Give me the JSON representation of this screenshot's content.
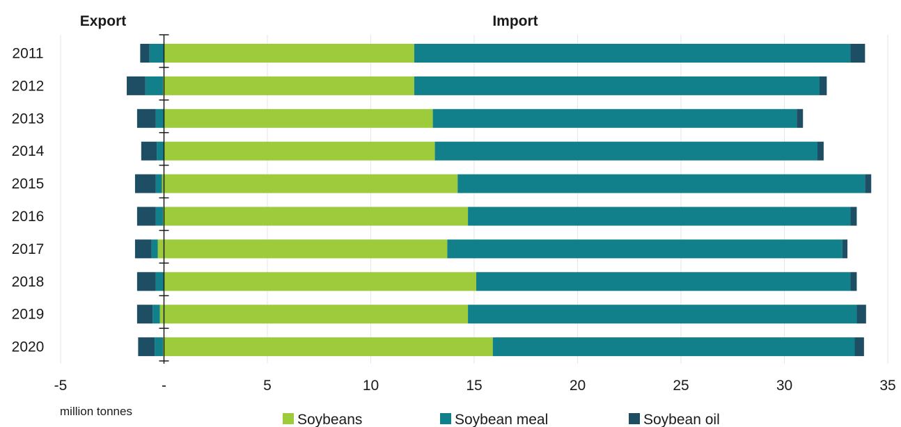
{
  "chart_data": {
    "type": "bar",
    "orientation": "horizontal",
    "stacked": true,
    "export_heading": "Export",
    "import_heading": "Import",
    "unit_label": "million tonnes",
    "categories": [
      "2011",
      "2012",
      "2013",
      "2014",
      "2015",
      "2016",
      "2017",
      "2018",
      "2019",
      "2020"
    ],
    "x_ticks": [
      {
        "value": -5,
        "label": "-5"
      },
      {
        "value": 0,
        "label": "-"
      },
      {
        "value": 5,
        "label": "5"
      },
      {
        "value": 10,
        "label": "10"
      },
      {
        "value": 15,
        "label": "15"
      },
      {
        "value": 20,
        "label": "20"
      },
      {
        "value": 25,
        "label": "25"
      },
      {
        "value": 30,
        "label": "30"
      },
      {
        "value": 35,
        "label": "35"
      }
    ],
    "xlim": [
      -5,
      35
    ],
    "grid": "vertical",
    "legend_position": "bottom",
    "series": [
      {
        "name": "Soybeans",
        "color": "#9ecb3c",
        "import": [
          12.1,
          12.1,
          13.0,
          13.1,
          14.2,
          14.7,
          13.7,
          15.1,
          14.7,
          15.9
        ],
        "export": [
          0.0,
          0.05,
          0.0,
          0.0,
          0.1,
          0.05,
          0.3,
          0.0,
          0.2,
          0.05
        ]
      },
      {
        "name": "Soybean meal",
        "color": "#12808a",
        "import": [
          21.1,
          19.6,
          17.6,
          18.5,
          19.7,
          18.5,
          19.1,
          18.1,
          18.8,
          17.5
        ],
        "export": [
          0.7,
          0.85,
          0.4,
          0.35,
          0.3,
          0.35,
          0.3,
          0.4,
          0.35,
          0.4
        ]
      },
      {
        "name": "Soybean oil",
        "color": "#1d4e63",
        "import": [
          0.7,
          0.35,
          0.3,
          0.3,
          0.3,
          0.3,
          0.25,
          0.3,
          0.45,
          0.45
        ],
        "export": [
          0.45,
          0.9,
          0.9,
          0.75,
          1.0,
          0.9,
          0.8,
          0.9,
          0.75,
          0.8
        ]
      }
    ]
  }
}
